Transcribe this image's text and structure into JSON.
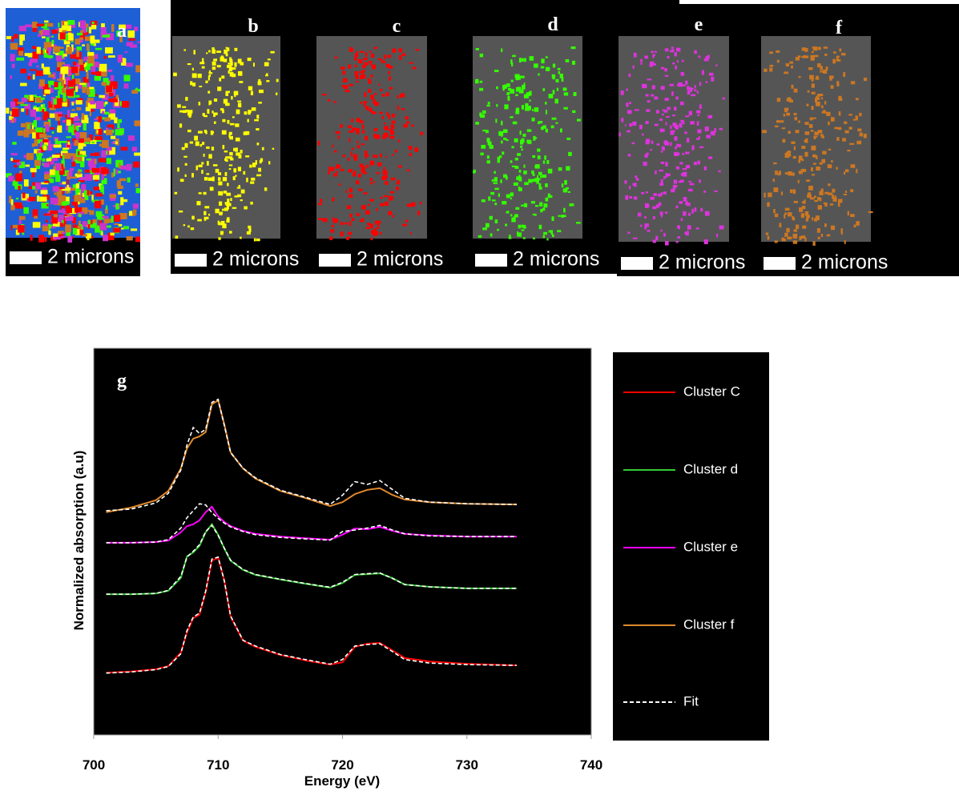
{
  "panels": [
    {
      "label": "a",
      "scalebar": "2 microns",
      "colors": [
        "#ffff00",
        "#ff0000",
        "#33ff00",
        "#cc33cc",
        "#cc7722"
      ]
    },
    {
      "label": "b",
      "scalebar": "2 microns",
      "colors": [
        "#ffff00"
      ]
    },
    {
      "label": "c",
      "scalebar": "2 microns",
      "colors": [
        "#ff0000"
      ]
    },
    {
      "label": "d",
      "scalebar": "2 microns",
      "colors": [
        "#33ff00"
      ]
    },
    {
      "label": "e",
      "scalebar": "2 microns",
      "colors": [
        "#dd33dd"
      ]
    },
    {
      "label": "f",
      "scalebar": "2 microns",
      "colors": [
        "#cc7722"
      ]
    }
  ],
  "chart_data": {
    "type": "line",
    "panel_label": "g",
    "x_label": "Energy (eV)",
    "y_label": "Normalized absorption (a.u)",
    "x": [
      701,
      703,
      705,
      706,
      707,
      707.5,
      708,
      708.5,
      709,
      709.5,
      710,
      710.5,
      711,
      712,
      713,
      715,
      717,
      719,
      720,
      721,
      722,
      723,
      724,
      725,
      727,
      730,
      734
    ],
    "xlim": [
      700,
      740
    ],
    "xticks": [
      700,
      710,
      720,
      730,
      740
    ],
    "ylim": [
      0,
      10
    ],
    "fit_name": "Fit",
    "fit_color": "#ffffff",
    "series": [
      {
        "name": "Cluster C",
        "color": "#ff0000",
        "values": [
          1.61,
          1.64,
          1.7,
          1.78,
          2.13,
          2.65,
          3.02,
          3.11,
          3.69,
          4.51,
          4.58,
          4.0,
          3.06,
          2.44,
          2.28,
          2.07,
          1.93,
          1.82,
          1.88,
          2.28,
          2.36,
          2.38,
          2.19,
          1.99,
          1.9,
          1.84,
          1.8
        ],
        "fit": [
          1.6,
          1.63,
          1.69,
          1.77,
          2.1,
          2.7,
          3.05,
          3.15,
          3.72,
          4.55,
          4.6,
          3.98,
          3.08,
          2.45,
          2.3,
          2.08,
          1.95,
          1.83,
          1.95,
          2.3,
          2.34,
          2.36,
          2.16,
          1.95,
          1.86,
          1.82,
          1.8
        ]
      },
      {
        "name": "Cluster d",
        "color": "#33cc33",
        "values": [
          3.64,
          3.64,
          3.66,
          3.73,
          4.06,
          4.62,
          4.72,
          4.89,
          5.24,
          5.45,
          5.18,
          4.82,
          4.51,
          4.27,
          4.14,
          4.02,
          3.91,
          3.81,
          3.93,
          4.14,
          4.16,
          4.18,
          4.06,
          3.89,
          3.83,
          3.79,
          3.79
        ],
        "fit": [
          3.64,
          3.64,
          3.66,
          3.74,
          4.1,
          4.6,
          4.75,
          4.92,
          5.26,
          5.42,
          5.16,
          4.83,
          4.52,
          4.28,
          4.15,
          4.03,
          3.92,
          3.82,
          3.95,
          4.15,
          4.17,
          4.19,
          4.05,
          3.89,
          3.83,
          3.79,
          3.79
        ]
      },
      {
        "name": "Cluster e",
        "color": "#ff00ff",
        "values": [
          4.97,
          4.97,
          4.99,
          5.03,
          5.24,
          5.4,
          5.45,
          5.55,
          5.76,
          5.9,
          5.65,
          5.51,
          5.4,
          5.28,
          5.2,
          5.13,
          5.09,
          5.05,
          5.18,
          5.34,
          5.32,
          5.38,
          5.28,
          5.2,
          5.16,
          5.13,
          5.13
        ],
        "fit": [
          4.97,
          4.97,
          4.99,
          5.05,
          5.35,
          5.62,
          5.8,
          5.98,
          5.95,
          5.75,
          5.6,
          5.48,
          5.38,
          5.26,
          5.18,
          5.11,
          5.07,
          5.04,
          5.26,
          5.3,
          5.35,
          5.42,
          5.3,
          5.2,
          5.15,
          5.13,
          5.13
        ]
      },
      {
        "name": "Cluster f",
        "color": "#e08a2c",
        "values": [
          5.76,
          5.88,
          6.07,
          6.31,
          6.89,
          7.41,
          7.66,
          7.72,
          7.83,
          8.55,
          8.65,
          8.03,
          7.31,
          6.89,
          6.63,
          6.31,
          6.13,
          5.92,
          6.02,
          6.23,
          6.34,
          6.38,
          6.21,
          6.09,
          6.02,
          5.98,
          5.96
        ],
        "fit": [
          5.8,
          5.84,
          6.0,
          6.25,
          6.85,
          7.5,
          7.95,
          7.8,
          7.9,
          8.6,
          8.68,
          8.0,
          7.3,
          6.9,
          6.65,
          6.33,
          6.15,
          5.96,
          6.2,
          6.55,
          6.48,
          6.58,
          6.35,
          6.12,
          6.02,
          5.98,
          5.96
        ]
      }
    ]
  }
}
